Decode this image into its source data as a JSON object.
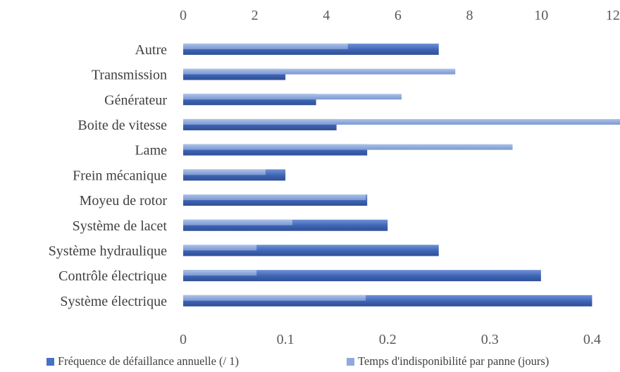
{
  "chart_data": {
    "type": "bar",
    "orientation": "horizontal",
    "categories": [
      "Autre",
      "Transmission",
      "Générateur",
      "Boite de vitesse",
      "Lame",
      "Frein mécanique",
      "Moyeu de rotor",
      "Système de lacet",
      "Système hydraulique",
      "Contrôle électrique",
      "Système électrique"
    ],
    "series": [
      {
        "name": "Fréquence de défaillance annuelle (/ 1)",
        "axis": "bottom",
        "color": "#4472C4",
        "values": [
          0.25,
          0.1,
          0.13,
          0.15,
          0.18,
          0.1,
          0.18,
          0.2,
          0.25,
          0.35,
          0.4
        ]
      },
      {
        "name": "Temps d'indisponibilité par panne (jours)",
        "axis": "top",
        "color": "#8FAADC",
        "values": [
          4.6,
          7.6,
          6.1,
          12.5,
          9.2,
          2.3,
          5.1,
          3.05,
          2.05,
          2.05,
          5.1
        ]
      }
    ],
    "top_axis": {
      "ticks": [
        "0",
        "2",
        "4",
        "6",
        "8",
        "10",
        "12"
      ],
      "range": [
        0,
        12.2
      ]
    },
    "bottom_axis": {
      "ticks": [
        "0",
        "0.1",
        "0.2",
        "0.3",
        "0.4"
      ],
      "range": [
        0,
        0.4273
      ]
    },
    "legend_position": "bottom",
    "grid": false
  }
}
